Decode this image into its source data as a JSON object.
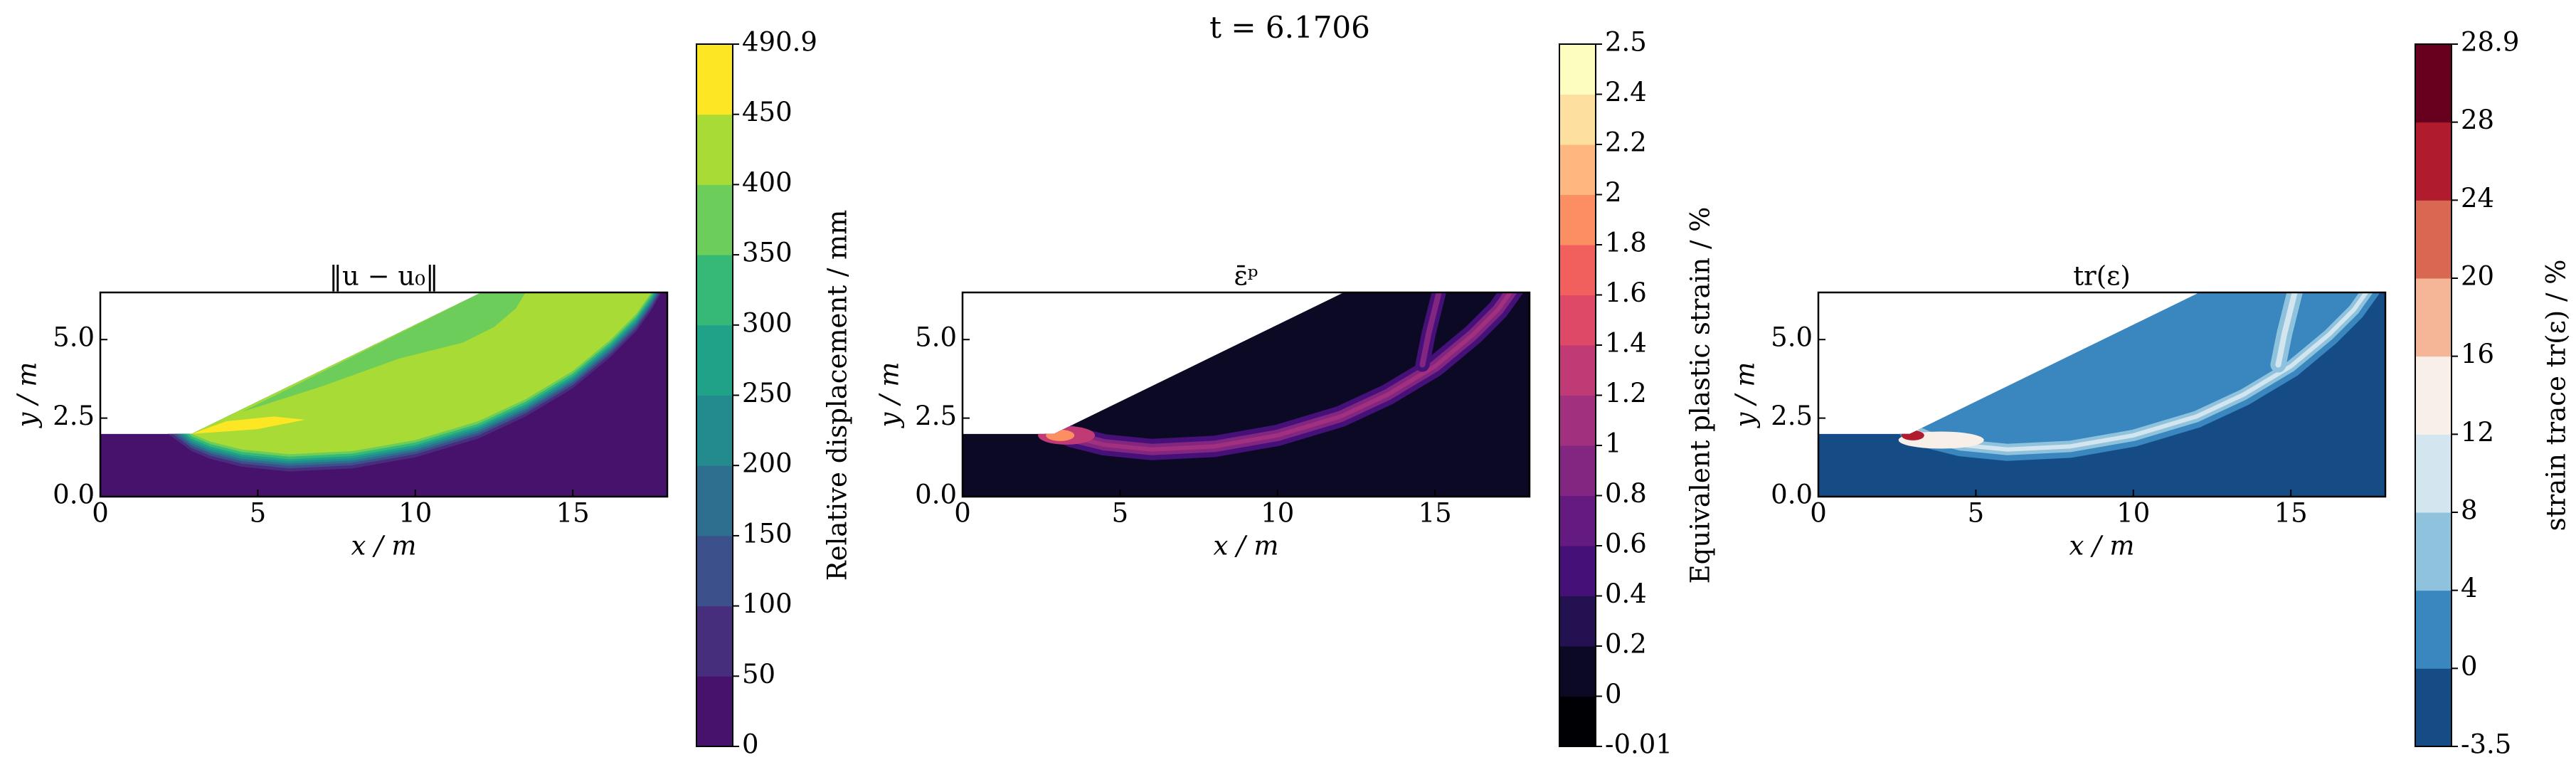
{
  "title": "t = 6.1706",
  "chart_data": [
    {
      "type": "contour",
      "title": "‖u − u₀‖",
      "xlabel": "x / m",
      "ylabel": "y / m",
      "xlim": [
        0,
        18
      ],
      "ylim": [
        0,
        6.5
      ],
      "xticks": [
        0,
        5,
        10,
        15
      ],
      "yticks": [
        {
          "value": 0,
          "label": "0.0"
        },
        {
          "value": 2.5,
          "label": "2.5"
        },
        {
          "value": 5,
          "label": "5.0"
        }
      ],
      "colorbar": {
        "label": "Relative displacement / mm",
        "ticks": [
          0,
          50,
          100,
          150,
          200,
          250,
          300,
          350,
          400,
          450,
          490.9
        ],
        "colors": [
          "#46126b",
          "#472e7c",
          "#3c508b",
          "#2e6e8e",
          "#238a8d",
          "#1fa287",
          "#36b877",
          "#6ccd5a",
          "#a8db35",
          "#fde725"
        ]
      }
    },
    {
      "type": "contour",
      "title": "ε̄ᵖ",
      "xlabel": "x / m",
      "ylabel": "y / m",
      "xlim": [
        0,
        18
      ],
      "ylim": [
        0,
        6.5
      ],
      "xticks": [
        0,
        5,
        10,
        15
      ],
      "yticks": [
        {
          "value": 0,
          "label": "0.0"
        },
        {
          "value": 2.5,
          "label": "2.5"
        },
        {
          "value": 5,
          "label": "5.0"
        }
      ],
      "colorbar": {
        "label": "Equivalent plastic strain / %",
        "ticks": [
          -0.01,
          0,
          0.2,
          0.4,
          0.6,
          0.8,
          1,
          1.2,
          1.4,
          1.6,
          1.8,
          2,
          2.2,
          2.4,
          2.5
        ],
        "colors": [
          "#000004",
          "#0b0924",
          "#231151",
          "#451077",
          "#641a80",
          "#822681",
          "#a1307e",
          "#c03a76",
          "#de4968",
          "#f1605d",
          "#fc8f61",
          "#feb77e",
          "#fde0a0",
          "#fcfdbf"
        ]
      }
    },
    {
      "type": "contour",
      "title": "tr(ε)",
      "xlabel": "x / m",
      "ylabel": "y / m",
      "xlim": [
        0,
        18
      ],
      "ylim": [
        0,
        6.5
      ],
      "xticks": [
        0,
        5,
        10,
        15
      ],
      "yticks": [
        {
          "value": 0,
          "label": "0.0"
        },
        {
          "value": 2.5,
          "label": "2.5"
        },
        {
          "value": 5,
          "label": "5.0"
        }
      ],
      "colorbar": {
        "label": "strain trace tr(ε) / %",
        "ticks": [
          -3.5,
          0,
          4,
          8,
          12,
          16,
          20,
          24,
          28,
          28.9
        ],
        "colors": [
          "#154c86",
          "#3a87bf",
          "#8fc2dd",
          "#d3e6f0",
          "#f9efe9",
          "#f5b597",
          "#d86852",
          "#b01c2e",
          "#67001f"
        ]
      }
    }
  ]
}
